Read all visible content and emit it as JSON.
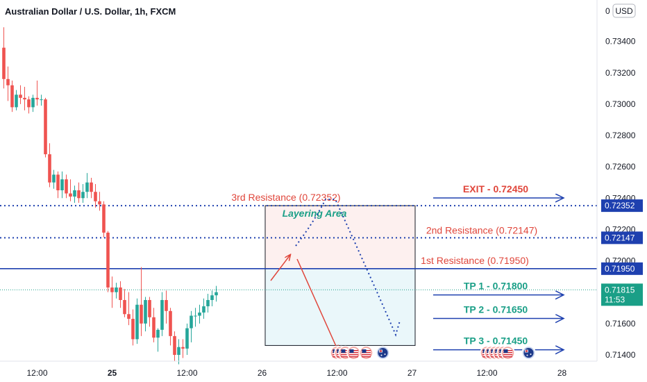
{
  "header": {
    "title": "Australian Dollar / U.S. Dollar, 1h, FXCM",
    "currency_button": "USD"
  },
  "colors": {
    "up": "#26a69a",
    "down": "#ef5350",
    "resistance_line": "#1e40af",
    "resistance_label": "#e0453a",
    "tp_label": "#1a9f87",
    "arrow": "#1e40af",
    "current_price": "#1a9f87",
    "axis_tag": "#1e40af"
  },
  "chart_data": {
    "type": "candlestick",
    "ylim": [
      0.7132,
      0.7358
    ],
    "y_ticks": [
      "0.73400",
      "0.73200",
      "0.73000",
      "0.72800",
      "0.72600",
      "0.72400",
      "0.72200",
      "0.72000",
      "0.71600",
      "0.71400"
    ],
    "y_tick_values": [
      0.734,
      0.732,
      0.73,
      0.728,
      0.726,
      0.724,
      0.722,
      0.72,
      0.716,
      0.714
    ],
    "top_partial_tick": "0",
    "x_ticks": [
      {
        "label": "12:00",
        "bar": 8,
        "bold": false
      },
      {
        "label": "25",
        "bar": 26,
        "bold": true
      },
      {
        "label": "12:00",
        "bar": 44,
        "bold": false
      },
      {
        "label": "26",
        "bar": 62,
        "bold": false
      },
      {
        "label": "12:00",
        "bar": 80,
        "bold": false
      },
      {
        "label": "27",
        "bar": 98,
        "bold": false
      },
      {
        "label": "12:00",
        "bar": 116,
        "bold": false
      },
      {
        "label": "28",
        "bar": 134,
        "bold": false
      }
    ],
    "candles": [
      [
        0.7336,
        0.7349,
        0.731,
        0.7316
      ],
      [
        0.7316,
        0.7324,
        0.7302,
        0.7312
      ],
      [
        0.7312,
        0.7315,
        0.7295,
        0.7298
      ],
      [
        0.7298,
        0.7309,
        0.7296,
        0.7306
      ],
      [
        0.7306,
        0.7312,
        0.73,
        0.7304
      ],
      [
        0.7304,
        0.7311,
        0.7296,
        0.7303
      ],
      [
        0.7303,
        0.7305,
        0.7294,
        0.7298
      ],
      [
        0.7298,
        0.7306,
        0.7295,
        0.7304
      ],
      [
        0.7304,
        0.7315,
        0.7299,
        0.7303
      ],
      [
        0.7303,
        0.7306,
        0.7299,
        0.7303
      ],
      [
        0.7303,
        0.7304,
        0.7266,
        0.7268
      ],
      [
        0.7268,
        0.7275,
        0.7247,
        0.725
      ],
      [
        0.725,
        0.7258,
        0.7246,
        0.7255
      ],
      [
        0.7255,
        0.7257,
        0.724,
        0.7245
      ],
      [
        0.7245,
        0.7257,
        0.724,
        0.7252
      ],
      [
        0.7252,
        0.7255,
        0.724,
        0.7243
      ],
      [
        0.7243,
        0.7252,
        0.7238,
        0.7241
      ],
      [
        0.7241,
        0.7248,
        0.7237,
        0.7245
      ],
      [
        0.7245,
        0.725,
        0.7237,
        0.724
      ],
      [
        0.724,
        0.7249,
        0.7237,
        0.7244
      ],
      [
        0.7244,
        0.7256,
        0.724,
        0.725
      ],
      [
        0.725,
        0.7253,
        0.724,
        0.7244
      ],
      [
        0.7244,
        0.7249,
        0.7234,
        0.7238
      ],
      [
        0.7238,
        0.7244,
        0.7232,
        0.7236
      ],
      [
        0.7236,
        0.7238,
        0.7215,
        0.7218
      ],
      [
        0.7218,
        0.7219,
        0.718,
        0.7183
      ],
      [
        0.7183,
        0.719,
        0.717,
        0.718
      ],
      [
        0.718,
        0.7186,
        0.7176,
        0.7183
      ],
      [
        0.7183,
        0.7187,
        0.717,
        0.7175
      ],
      [
        0.7175,
        0.7182,
        0.7164,
        0.7166
      ],
      [
        0.7166,
        0.718,
        0.7159,
        0.7163
      ],
      [
        0.7163,
        0.7169,
        0.7146,
        0.715
      ],
      [
        0.715,
        0.7176,
        0.7147,
        0.7172
      ],
      [
        0.7172,
        0.7196,
        0.7152,
        0.716
      ],
      [
        0.716,
        0.7177,
        0.7155,
        0.7175
      ],
      [
        0.7175,
        0.7177,
        0.7158,
        0.7164
      ],
      [
        0.7164,
        0.717,
        0.7148,
        0.7151
      ],
      [
        0.7151,
        0.7157,
        0.7142,
        0.7156
      ],
      [
        0.7156,
        0.718,
        0.7152,
        0.7175
      ],
      [
        0.7175,
        0.7181,
        0.716,
        0.7168
      ],
      [
        0.7168,
        0.717,
        0.7146,
        0.7152
      ],
      [
        0.7152,
        0.7155,
        0.7136,
        0.714
      ],
      [
        0.714,
        0.715,
        0.7134,
        0.7145
      ],
      [
        0.7145,
        0.715,
        0.7138,
        0.7144
      ],
      [
        0.7144,
        0.716,
        0.714,
        0.7157
      ],
      [
        0.7157,
        0.7168,
        0.7148,
        0.7165
      ],
      [
        0.7165,
        0.717,
        0.7158,
        0.7165
      ],
      [
        0.7165,
        0.7172,
        0.716,
        0.7167
      ],
      [
        0.7167,
        0.7176,
        0.7163,
        0.7171
      ],
      [
        0.7171,
        0.7179,
        0.7167,
        0.7175
      ],
      [
        0.7175,
        0.7181,
        0.7171,
        0.7178
      ],
      [
        0.7178,
        0.7184,
        0.7174,
        0.718
      ]
    ]
  },
  "horizontal_levels": [
    {
      "name": "3rd Resistance",
      "price": 0.72352,
      "style": "dotted",
      "label": "3rd Resistance (0.72352)",
      "axis_tag": "0.72352"
    },
    {
      "name": "2nd Resistance",
      "price": 0.72147,
      "style": "dotted",
      "label": "2nd Resistance (0.72147)",
      "axis_tag": "0.72147"
    },
    {
      "name": "1st Resistance",
      "price": 0.7195,
      "style": "solid",
      "label": "1st Resistance (0.71950)",
      "axis_tag": "0.71950"
    }
  ],
  "current_price": {
    "price": 0.71815,
    "label": "0.71815",
    "countdown": "11:53"
  },
  "targets": [
    {
      "label": "EXIT - 0.72450",
      "price": 0.7245,
      "kind": "exit"
    },
    {
      "label": "TP 1 - 0.71800",
      "price": 0.718,
      "kind": "tp"
    },
    {
      "label": "TP 2 - 0.71650",
      "price": 0.7165,
      "kind": "tp"
    },
    {
      "label": "TP 3 - 0.71450",
      "price": 0.7145,
      "kind": "tp"
    }
  ],
  "layering_zone": {
    "label": "Layering Area",
    "top_price": 0.72352,
    "mid_price": 0.7195,
    "bottom_price": 0.7146
  },
  "event_flags": [
    {
      "bar": 80,
      "flag": "us-flag"
    },
    {
      "bar": 81,
      "flag": "us-flag"
    },
    {
      "bar": 82,
      "flag": "us-flag"
    },
    {
      "bar": 84,
      "flag": "us-flag"
    },
    {
      "bar": 87,
      "flag": "us-flag"
    },
    {
      "bar": 91,
      "flag": "au-flag"
    },
    {
      "bar": 116,
      "flag": "us-flag"
    },
    {
      "bar": 117,
      "flag": "us-flag"
    },
    {
      "bar": 118,
      "flag": "us-flag"
    },
    {
      "bar": 119,
      "flag": "us-flag"
    },
    {
      "bar": 120,
      "flag": "us-flag"
    },
    {
      "bar": 121,
      "flag": "us-flag"
    },
    {
      "bar": 126,
      "flag": "au-flag"
    }
  ]
}
